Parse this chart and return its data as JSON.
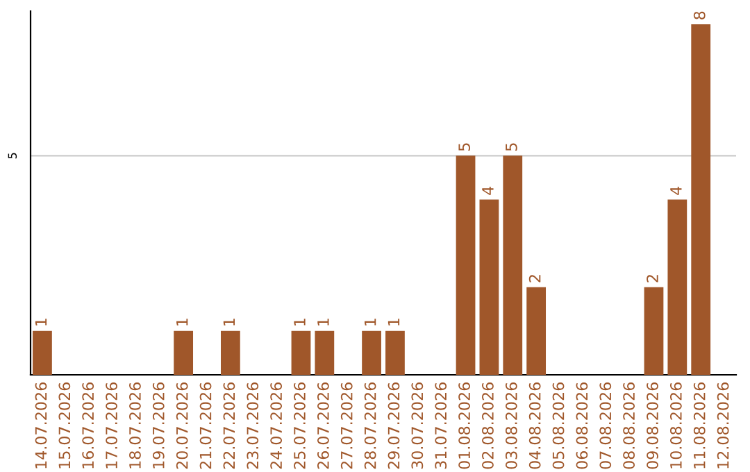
{
  "chart_data": {
    "type": "bar",
    "categories": [
      "14.07.2026",
      "15.07.2026",
      "16.07.2026",
      "17.07.2026",
      "18.07.2026",
      "19.07.2026",
      "20.07.2026",
      "21.07.2026",
      "22.07.2026",
      "23.07.2026",
      "24.07.2026",
      "25.07.2026",
      "26.07.2026",
      "27.07.2026",
      "28.07.2026",
      "29.07.2026",
      "30.07.2026",
      "31.07.2026",
      "01.08.2026",
      "02.08.2026",
      "03.08.2026",
      "04.08.2026",
      "05.08.2026",
      "06.08.2026",
      "07.08.2026",
      "08.08.2026",
      "09.08.2026",
      "10.08.2026",
      "11.08.2026",
      "12.08.2026"
    ],
    "values": [
      1,
      0,
      0,
      0,
      0,
      0,
      1,
      0,
      1,
      0,
      0,
      1,
      1,
      0,
      1,
      1,
      0,
      0,
      5,
      4,
      5,
      2,
      0,
      0,
      0,
      0,
      2,
      4,
      8,
      0
    ],
    "value_labels": [
      "1",
      null,
      null,
      null,
      null,
      null,
      "1",
      null,
      "1",
      null,
      null,
      "1",
      "1",
      null,
      "1",
      "1",
      null,
      null,
      "5",
      "4",
      "5",
      "2",
      null,
      null,
      null,
      null,
      "2",
      "4",
      "8",
      null
    ],
    "color": "#a0572a",
    "ylim": [
      0,
      8.3
    ],
    "yticks": [
      5
    ],
    "grid": "y"
  }
}
